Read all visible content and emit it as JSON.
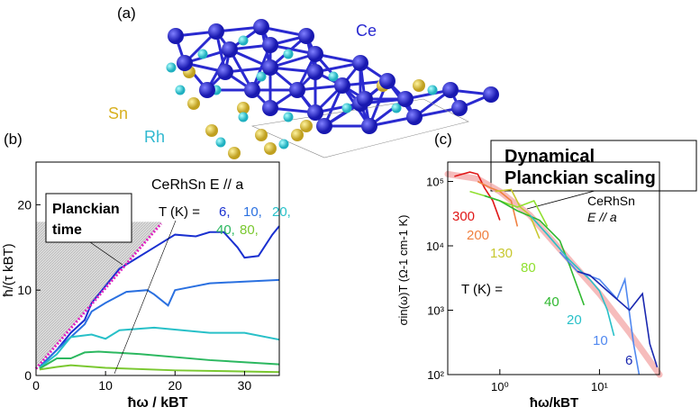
{
  "panel_a": {
    "label": "(a)",
    "atoms": {
      "ce": "Ce",
      "sn": "Sn",
      "rh": "Rh"
    },
    "colors": {
      "ce": "#2a2ad0",
      "sn": "#d8c040",
      "rh": "#30c8d0"
    }
  },
  "annotation": {
    "line1": "Dynamical",
    "line2": "Planckian scaling"
  },
  "chart_data": [
    {
      "panel": "(b)",
      "type": "line",
      "xlabel": "ħω / kBT",
      "ylabel": "ħ/(τ kBT)",
      "xlim": [
        0,
        35
      ],
      "ylim": [
        0,
        25
      ],
      "xticks": [
        "0",
        "10",
        "20",
        "30"
      ],
      "yticks": [
        "0",
        "10",
        "20"
      ],
      "title": "CeRhSn  E // a",
      "legend_prefix": "T (K) =",
      "callout": {
        "line1": "Planckian",
        "line2": "time"
      },
      "planckian_line": {
        "color": "#e020c0",
        "points": [
          [
            0,
            0.8
          ],
          [
            18,
            17.8
          ]
        ]
      },
      "series": [
        {
          "name": "6",
          "color": "#1a30d0",
          "points": [
            [
              0.5,
              1
            ],
            [
              3,
              3
            ],
            [
              5,
              5
            ],
            [
              7,
              6.5
            ],
            [
              8,
              8.5
            ],
            [
              10,
              10.5
            ],
            [
              12,
              12.5
            ],
            [
              14,
              13.5
            ],
            [
              17,
              15
            ],
            [
              20,
              16.5
            ],
            [
              23,
              16.3
            ],
            [
              25,
              16.8
            ],
            [
              27,
              16.8
            ],
            [
              29,
              15
            ],
            [
              30,
              13.8
            ],
            [
              32,
              14
            ],
            [
              34,
              16.5
            ],
            [
              35,
              17.5
            ]
          ]
        },
        {
          "name": "10",
          "color": "#2a70e0",
          "points": [
            [
              0.5,
              1
            ],
            [
              3,
              3
            ],
            [
              5,
              4.5
            ],
            [
              7,
              6
            ],
            [
              8,
              7.5
            ],
            [
              10,
              8.5
            ],
            [
              13,
              9.8
            ],
            [
              16,
              10
            ],
            [
              17,
              9.5
            ],
            [
              19,
              8.2
            ],
            [
              20,
              10
            ],
            [
              25,
              10.8
            ],
            [
              30,
              11
            ],
            [
              35,
              11.2
            ]
          ]
        },
        {
          "name": "20",
          "color": "#28c0c8",
          "points": [
            [
              0.5,
              0.9
            ],
            [
              3,
              2.5
            ],
            [
              5,
              4.5
            ],
            [
              8,
              4.8
            ],
            [
              10,
              4.3
            ],
            [
              12,
              5.3
            ],
            [
              17,
              5.6
            ],
            [
              25,
              5
            ],
            [
              30,
              5
            ],
            [
              35,
              4.2
            ]
          ]
        },
        {
          "name": "40",
          "color": "#2cb860",
          "points": [
            [
              0.5,
              0.8
            ],
            [
              3,
              2
            ],
            [
              5,
              2
            ],
            [
              7,
              2.7
            ],
            [
              9,
              2.8
            ],
            [
              15,
              2.5
            ],
            [
              25,
              1.8
            ],
            [
              35,
              1.3
            ]
          ]
        },
        {
          "name": "80",
          "color": "#7ac830",
          "points": [
            [
              0.5,
              0.7
            ],
            [
              3,
              1
            ],
            [
              5,
              1.2
            ],
            [
              10,
              0.9
            ],
            [
              20,
              0.6
            ],
            [
              35,
              0.4
            ]
          ]
        }
      ]
    },
    {
      "panel": "(c)",
      "type": "line",
      "xscale": "log",
      "yscale": "log",
      "xlabel": "ħω/kBT",
      "ylabel": "σin(ω)T (Ω-1 cm-1 K)",
      "xlim": [
        0.3,
        40
      ],
      "ylim": [
        100,
        200000
      ],
      "xticks": [
        "10⁰",
        "10¹"
      ],
      "yticks": [
        "10²",
        "10³",
        "10⁴",
        "10⁵"
      ],
      "title_line1": "CeRhSn",
      "title_line2": "E // a",
      "legend_prefix": "T (K) =",
      "fit": {
        "color": "#f4b0b0",
        "points": [
          [
            0.3,
            130000
          ],
          [
            0.6,
            110000
          ],
          [
            1,
            70000
          ],
          [
            2,
            30000
          ],
          [
            5,
            6000
          ],
          [
            10,
            1800
          ],
          [
            20,
            450
          ],
          [
            40,
            100
          ]
        ]
      },
      "series": [
        {
          "name": "300",
          "color": "#e01818",
          "points": [
            [
              0.35,
              120000
            ],
            [
              0.5,
              140000
            ],
            [
              0.6,
              130000
            ],
            [
              0.7,
              80000
            ],
            [
              0.85,
              50000
            ],
            [
              1.0,
              25000
            ]
          ]
        },
        {
          "name": "200",
          "color": "#f08040",
          "points": [
            [
              0.6,
              100000
            ],
            [
              0.8,
              80000
            ],
            [
              1.0,
              70000
            ],
            [
              1.3,
              50000
            ],
            [
              1.5,
              20000
            ]
          ]
        },
        {
          "name": "130",
          "color": "#c8c830",
          "points": [
            [
              0.9,
              70000
            ],
            [
              1.3,
              75000
            ],
            [
              1.6,
              40000
            ],
            [
              2.0,
              30000
            ],
            [
              2.5,
              13000
            ]
          ]
        },
        {
          "name": "80",
          "color": "#90e030",
          "points": [
            [
              0.5,
              70000
            ],
            [
              0.7,
              60000
            ],
            [
              1.0,
              50000
            ],
            [
              1.5,
              40000
            ],
            [
              2.2,
              50000
            ],
            [
              3,
              20000
            ]
          ]
        },
        {
          "name": "40",
          "color": "#30b830",
          "points": [
            [
              0.7,
              60000
            ],
            [
              1,
              50000
            ],
            [
              1.5,
              35000
            ],
            [
              2.5,
              25000
            ],
            [
              4,
              12000
            ],
            [
              5,
              5000
            ],
            [
              7,
              1200
            ]
          ]
        },
        {
          "name": "20",
          "color": "#28c0c8",
          "points": [
            [
              2,
              30000
            ],
            [
              3,
              15000
            ],
            [
              5,
              6000
            ],
            [
              8,
              3000
            ],
            [
              10,
              2000
            ],
            [
              12,
              1000
            ],
            [
              14,
              400
            ]
          ]
        },
        {
          "name": "10",
          "color": "#5088f0",
          "points": [
            [
              4,
              8000
            ],
            [
              6,
              4000
            ],
            [
              10,
              3000
            ],
            [
              15,
              1500
            ],
            [
              18,
              3000
            ],
            [
              22,
              300
            ],
            [
              25,
              100
            ]
          ]
        },
        {
          "name": "6",
          "color": "#1a28b0",
          "points": [
            [
              6,
              4000
            ],
            [
              8,
              3500
            ],
            [
              12,
              2000
            ],
            [
              20,
              1000
            ],
            [
              27,
              1800
            ],
            [
              32,
              300
            ],
            [
              38,
              130
            ]
          ]
        }
      ]
    }
  ]
}
